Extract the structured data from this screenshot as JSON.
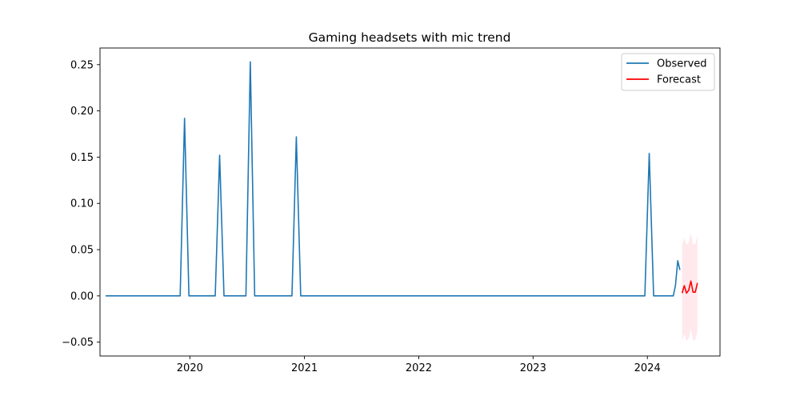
{
  "chart_data": {
    "type": "line",
    "title": "Gaming headsets with mic trend",
    "xlabel": "",
    "ylabel": "",
    "xlim": [
      "2019-03-20",
      "2024-08-20"
    ],
    "ylim": [
      -0.065,
      0.268
    ],
    "x_ticks": [
      {
        "date": "2020-01-01",
        "label": "2020"
      },
      {
        "date": "2021-01-01",
        "label": "2021"
      },
      {
        "date": "2022-01-01",
        "label": "2022"
      },
      {
        "date": "2023-01-01",
        "label": "2023"
      },
      {
        "date": "2024-01-01",
        "label": "2024"
      }
    ],
    "y_ticks": [
      {
        "value": -0.05,
        "label": "−0.05"
      },
      {
        "value": 0.0,
        "label": "0.00"
      },
      {
        "value": 0.05,
        "label": "0.05"
      },
      {
        "value": 0.1,
        "label": "0.10"
      },
      {
        "value": 0.15,
        "label": "0.15"
      },
      {
        "value": 0.2,
        "label": "0.20"
      },
      {
        "value": 0.25,
        "label": "0.25"
      }
    ],
    "legend_position": "top-right",
    "grid": false,
    "series": [
      {
        "name": "Observed",
        "color": "#1f77b4",
        "points": [
          [
            "2019-04-07",
            0.0
          ],
          [
            "2019-12-01",
            0.0
          ],
          [
            "2019-12-15",
            0.192
          ],
          [
            "2019-12-29",
            0.0
          ],
          [
            "2020-03-22",
            0.0
          ],
          [
            "2020-04-05",
            0.152
          ],
          [
            "2020-04-19",
            0.0
          ],
          [
            "2020-06-28",
            0.0
          ],
          [
            "2020-07-12",
            0.253
          ],
          [
            "2020-07-26",
            0.0
          ],
          [
            "2020-11-22",
            0.0
          ],
          [
            "2020-12-06",
            0.172
          ],
          [
            "2020-12-20",
            0.0
          ],
          [
            "2023-12-24",
            0.0
          ],
          [
            "2024-01-07",
            0.154
          ],
          [
            "2024-01-21",
            0.0
          ],
          [
            "2024-03-24",
            0.0
          ],
          [
            "2024-03-31",
            0.012
          ],
          [
            "2024-04-07",
            0.038
          ],
          [
            "2024-04-14",
            0.028
          ]
        ]
      },
      {
        "name": "Forecast",
        "color": "#ff0000",
        "points": [
          [
            "2024-04-21",
            0.003
          ],
          [
            "2024-04-28",
            0.011
          ],
          [
            "2024-05-05",
            0.003
          ],
          [
            "2024-05-12",
            0.006
          ],
          [
            "2024-05-19",
            0.016
          ],
          [
            "2024-05-26",
            0.004
          ],
          [
            "2024-06-02",
            0.004
          ],
          [
            "2024-06-09",
            0.014
          ]
        ],
        "interval": {
          "color": "#ffc0cb",
          "upper": [
            0.055,
            0.063,
            0.055,
            0.058,
            0.068,
            0.056,
            0.056,
            0.066
          ],
          "lower": [
            -0.049,
            -0.041,
            -0.049,
            -0.046,
            -0.036,
            -0.048,
            -0.048,
            -0.038
          ]
        }
      }
    ]
  }
}
